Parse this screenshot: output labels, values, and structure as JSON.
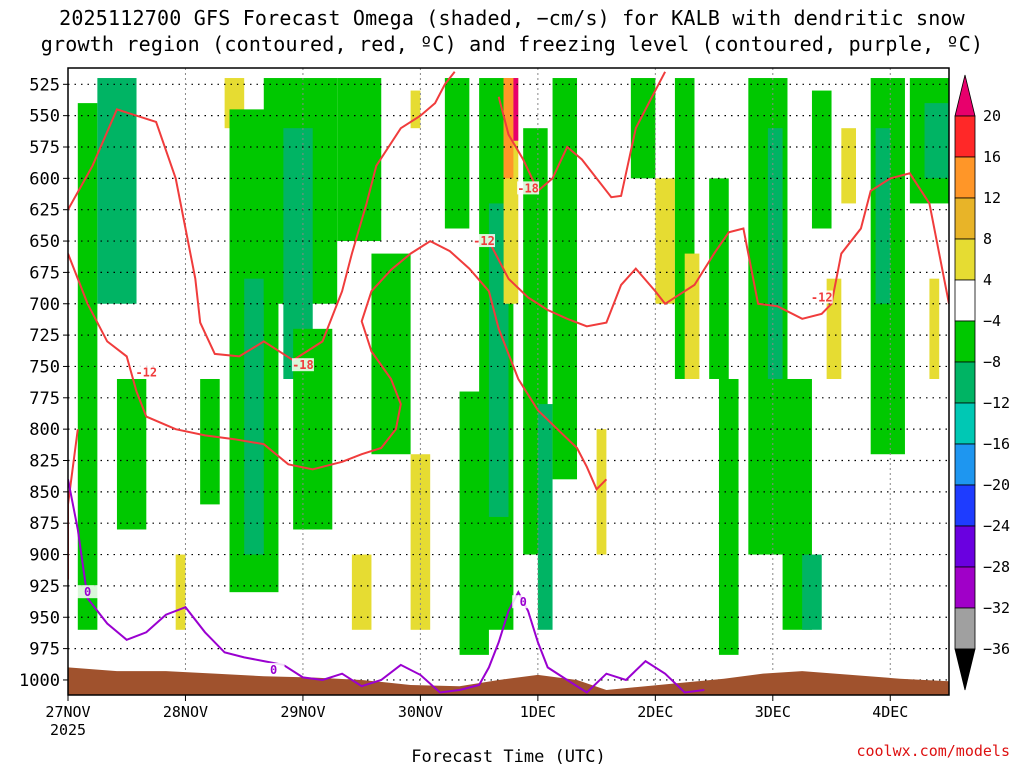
{
  "chart_data": {
    "type": "heatmap",
    "title_line1": "2025112700 GFS Forecast Omega (shaded, −cm/s) for KALB with dendritic snow",
    "title_line2": "growth region (contoured, red, ºC) and freezing level (contoured, purple, ºC)",
    "xlabel": "Forecast Time (UTC)",
    "credit": "coolwx.com/models",
    "x_ticks": [
      {
        "label": "27NOV",
        "sub": "2025",
        "hour": 0
      },
      {
        "label": "28NOV",
        "sub": "",
        "hour": 24
      },
      {
        "label": "29NOV",
        "sub": "",
        "hour": 48
      },
      {
        "label": "30NOV",
        "sub": "",
        "hour": 72
      },
      {
        "label": "1DEC",
        "sub": "",
        "hour": 96
      },
      {
        "label": "2DEC",
        "sub": "",
        "hour": 120
      },
      {
        "label": "3DEC",
        "sub": "",
        "hour": 144
      },
      {
        "label": "4DEC",
        "sub": "",
        "hour": 168
      }
    ],
    "xlim_hours": [
      0,
      180
    ],
    "y_levels_hPa": [
      525,
      550,
      575,
      600,
      625,
      650,
      675,
      700,
      725,
      750,
      775,
      800,
      825,
      850,
      875,
      900,
      925,
      950,
      975,
      1000
    ],
    "ylim_hPa": [
      512,
      1012
    ],
    "colorbar": {
      "labels": [
        "20",
        "16",
        "12",
        "8",
        "4",
        "−4",
        "−8",
        "−12",
        "−16",
        "−20",
        "−24",
        "−28",
        "−32",
        "−36"
      ],
      "colors": [
        "#e8006c",
        "#ff2828",
        "#ff9628",
        "#e8b428",
        "#e6dc32",
        "#ffffff",
        "#00c800",
        "#00b464",
        "#00c8b4",
        "#1e96f0",
        "#1e3cff",
        "#6a00e0",
        "#a000c8",
        "#a0a0a0",
        "#000000"
      ]
    },
    "omega_bands": [
      {
        "h0": 2,
        "h1": 6,
        "p0": 540,
        "p1": 960,
        "c": "green"
      },
      {
        "h0": 6,
        "h1": 14,
        "p0": 520,
        "p1": 700,
        "c": "teal"
      },
      {
        "h0": 10,
        "h1": 16,
        "p0": 760,
        "p1": 880,
        "c": "green"
      },
      {
        "h0": 22,
        "h1": 24,
        "p0": 900,
        "p1": 960,
        "c": "yellow"
      },
      {
        "h0": 27,
        "h1": 31,
        "p0": 760,
        "p1": 860,
        "c": "green"
      },
      {
        "h0": 32,
        "h1": 36,
        "p0": 520,
        "p1": 560,
        "c": "yellow"
      },
      {
        "h0": 33,
        "h1": 43,
        "p0": 545,
        "p1": 930,
        "c": "green"
      },
      {
        "h0": 36,
        "h1": 40,
        "p0": 680,
        "p1": 900,
        "c": "teal"
      },
      {
        "h0": 40,
        "h1": 55,
        "p0": 520,
        "p1": 700,
        "c": "green"
      },
      {
        "h0": 44,
        "h1": 50,
        "p0": 560,
        "p1": 760,
        "c": "teal"
      },
      {
        "h0": 46,
        "h1": 54,
        "p0": 720,
        "p1": 880,
        "c": "green"
      },
      {
        "h0": 55,
        "h1": 64,
        "p0": 520,
        "p1": 650,
        "c": "green"
      },
      {
        "h0": 58,
        "h1": 62,
        "p0": 900,
        "p1": 960,
        "c": "yellow"
      },
      {
        "h0": 62,
        "h1": 70,
        "p0": 660,
        "p1": 820,
        "c": "green"
      },
      {
        "h0": 70,
        "h1": 72,
        "p0": 530,
        "p1": 560,
        "c": "yellow"
      },
      {
        "h0": 70,
        "h1": 74,
        "p0": 820,
        "p1": 960,
        "c": "yellow"
      },
      {
        "h0": 77,
        "h1": 82,
        "p0": 520,
        "p1": 640,
        "c": "green"
      },
      {
        "h0": 80,
        "h1": 86,
        "p0": 770,
        "p1": 980,
        "c": "green"
      },
      {
        "h0": 84,
        "h1": 91,
        "p0": 520,
        "p1": 960,
        "c": "green"
      },
      {
        "h0": 86,
        "h1": 90,
        "p0": 620,
        "p1": 870,
        "c": "teal"
      },
      {
        "h0": 89,
        "h1": 92,
        "p0": 520,
        "p1": 700,
        "c": "yellow"
      },
      {
        "h0": 89,
        "h1": 91,
        "p0": 520,
        "p1": 600,
        "c": "orange"
      },
      {
        "h0": 91,
        "h1": 92,
        "p0": 520,
        "p1": 570,
        "c": "magenta"
      },
      {
        "h0": 93,
        "h1": 98,
        "p0": 560,
        "p1": 900,
        "c": "green"
      },
      {
        "h0": 96,
        "h1": 99,
        "p0": 780,
        "p1": 960,
        "c": "teal"
      },
      {
        "h0": 99,
        "h1": 104,
        "p0": 520,
        "p1": 840,
        "c": "green"
      },
      {
        "h0": 108,
        "h1": 110,
        "p0": 800,
        "p1": 900,
        "c": "yellow"
      },
      {
        "h0": 115,
        "h1": 120,
        "p0": 520,
        "p1": 600,
        "c": "green"
      },
      {
        "h0": 120,
        "h1": 124,
        "p0": 600,
        "p1": 700,
        "c": "yellow"
      },
      {
        "h0": 124,
        "h1": 128,
        "p0": 520,
        "p1": 760,
        "c": "green"
      },
      {
        "h0": 126,
        "h1": 129,
        "p0": 660,
        "p1": 760,
        "c": "yellow"
      },
      {
        "h0": 131,
        "h1": 135,
        "p0": 600,
        "p1": 760,
        "c": "green"
      },
      {
        "h0": 133,
        "h1": 137,
        "p0": 760,
        "p1": 980,
        "c": "green"
      },
      {
        "h0": 139,
        "h1": 147,
        "p0": 520,
        "p1": 900,
        "c": "green"
      },
      {
        "h0": 143,
        "h1": 146,
        "p0": 560,
        "p1": 760,
        "c": "teal"
      },
      {
        "h0": 146,
        "h1": 152,
        "p0": 760,
        "p1": 960,
        "c": "green"
      },
      {
        "h0": 150,
        "h1": 154,
        "p0": 900,
        "p1": 960,
        "c": "teal"
      },
      {
        "h0": 152,
        "h1": 156,
        "p0": 530,
        "p1": 640,
        "c": "green"
      },
      {
        "h0": 155,
        "h1": 158,
        "p0": 680,
        "p1": 760,
        "c": "yellow"
      },
      {
        "h0": 158,
        "h1": 161,
        "p0": 560,
        "p1": 620,
        "c": "yellow"
      },
      {
        "h0": 164,
        "h1": 171,
        "p0": 520,
        "p1": 820,
        "c": "green"
      },
      {
        "h0": 165,
        "h1": 168,
        "p0": 560,
        "p1": 700,
        "c": "teal"
      },
      {
        "h0": 172,
        "h1": 180,
        "p0": 520,
        "p1": 620,
        "c": "green"
      },
      {
        "h0": 175,
        "h1": 180,
        "p0": 540,
        "p1": 600,
        "c": "teal"
      },
      {
        "h0": 176,
        "h1": 178,
        "p0": 680,
        "p1": 760,
        "c": "yellow"
      }
    ],
    "dgz_contours": [
      {
        "label": "-18",
        "label_at": [
          48,
          749
        ],
        "pts": [
          [
            0,
            625
          ],
          [
            5,
            590
          ],
          [
            10,
            545
          ],
          [
            18,
            555
          ],
          [
            22,
            600
          ],
          [
            24,
            640
          ],
          [
            26,
            680
          ],
          [
            27,
            715
          ],
          [
            30,
            740
          ],
          [
            35,
            742
          ],
          [
            40,
            730
          ],
          [
            46,
            745
          ],
          [
            52,
            730
          ],
          [
            56,
            690
          ],
          [
            58,
            660
          ],
          [
            61,
            620
          ],
          [
            63,
            590
          ],
          [
            68,
            560
          ],
          [
            72,
            550
          ],
          [
            75,
            540
          ],
          [
            77,
            525
          ],
          [
            79,
            515
          ]
        ]
      },
      {
        "label": "-18",
        "label_at": [
          94,
          608
        ],
        "pts": [
          [
            88,
            535
          ],
          [
            90,
            565
          ],
          [
            93,
            585
          ],
          [
            96,
            610
          ],
          [
            99,
            600
          ],
          [
            102,
            575
          ],
          [
            105,
            585
          ],
          [
            108,
            600
          ],
          [
            111,
            615
          ],
          [
            113,
            614
          ],
          [
            116,
            560
          ],
          [
            118,
            545
          ],
          [
            120,
            530
          ],
          [
            122,
            515
          ]
        ]
      },
      {
        "label": "-12",
        "label_at": [
          16,
          755
        ],
        "pts": [
          [
            0,
            660
          ],
          [
            4,
            700
          ],
          [
            8,
            730
          ],
          [
            12,
            742
          ],
          [
            14,
            770
          ],
          [
            16,
            790
          ],
          [
            22,
            800
          ],
          [
            28,
            805
          ],
          [
            34,
            808
          ],
          [
            40,
            812
          ],
          [
            45,
            828
          ],
          [
            50,
            832
          ],
          [
            56,
            826
          ],
          [
            60,
            820
          ],
          [
            64,
            815
          ],
          [
            67,
            800
          ],
          [
            68,
            780
          ],
          [
            66,
            760
          ],
          [
            62,
            738
          ],
          [
            60,
            714
          ],
          [
            62,
            690
          ],
          [
            66,
            673
          ],
          [
            70,
            660
          ],
          [
            74,
            650
          ],
          [
            78,
            658
          ],
          [
            82,
            672
          ],
          [
            86,
            690
          ],
          [
            88,
            720
          ],
          [
            92,
            760
          ],
          [
            96,
            785
          ],
          [
            100,
            800
          ],
          [
            104,
            815
          ],
          [
            106,
            830
          ],
          [
            108,
            848
          ],
          [
            110,
            840
          ]
        ]
      },
      {
        "label": "-12",
        "label_at": [
          85,
          650
        ],
        "pts": [
          [
            86,
            650
          ],
          [
            90,
            680
          ],
          [
            94,
            695
          ],
          [
            98,
            705
          ],
          [
            102,
            712
          ],
          [
            106,
            718
          ],
          [
            110,
            715
          ],
          [
            113,
            685
          ],
          [
            116,
            672
          ],
          [
            120,
            690
          ],
          [
            122,
            700
          ],
          [
            128,
            685
          ],
          [
            132,
            660
          ],
          [
            135,
            643
          ],
          [
            138,
            640
          ],
          [
            141,
            700
          ],
          [
            145,
            702
          ],
          [
            150,
            712
          ],
          [
            154,
            708
          ],
          [
            156,
            700
          ],
          [
            158,
            660
          ],
          [
            162,
            640
          ],
          [
            164,
            610
          ],
          [
            168,
            600
          ],
          [
            172,
            596
          ],
          [
            176,
            620
          ],
          [
            180,
            700
          ]
        ]
      },
      {
        "label": "-12",
        "label_at": [
          154,
          695
        ],
        "pts": [
          [
            0,
            920
          ],
          [
            0,
            860
          ],
          [
            2,
            800
          ]
        ]
      }
    ],
    "freezing_contour": {
      "label": "0",
      "pts": [
        [
          0,
          840
        ],
        [
          2,
          880
        ],
        [
          4,
          935
        ],
        [
          8,
          955
        ],
        [
          12,
          968
        ],
        [
          16,
          962
        ],
        [
          20,
          948
        ],
        [
          24,
          942
        ],
        [
          28,
          962
        ],
        [
          32,
          978
        ],
        [
          36,
          982
        ],
        [
          40,
          985
        ],
        [
          44,
          988
        ],
        [
          48,
          998
        ],
        [
          52,
          1000
        ],
        [
          56,
          995
        ],
        [
          60,
          1005
        ],
        [
          64,
          1000
        ],
        [
          68,
          988
        ],
        [
          72,
          996
        ],
        [
          76,
          1010
        ],
        [
          80,
          1008
        ],
        [
          84,
          1004
        ],
        [
          86,
          990
        ],
        [
          88,
          970
        ],
        [
          90,
          945
        ],
        [
          92,
          930
        ],
        [
          94,
          945
        ],
        [
          96,
          970
        ],
        [
          98,
          990
        ],
        [
          102,
          1000
        ],
        [
          106,
          1010
        ],
        [
          110,
          995
        ],
        [
          114,
          1000
        ],
        [
          118,
          985
        ],
        [
          122,
          995
        ],
        [
          126,
          1010
        ],
        [
          130,
          1008
        ]
      ],
      "labels_at": [
        [
          4,
          930
        ],
        [
          42,
          992
        ],
        [
          93,
          938
        ]
      ]
    },
    "terrain_pressure": [
      [
        0,
        990
      ],
      [
        10,
        993
      ],
      [
        20,
        993
      ],
      [
        30,
        995
      ],
      [
        40,
        997
      ],
      [
        50,
        998
      ],
      [
        60,
        1000
      ],
      [
        70,
        1004
      ],
      [
        80,
        1005
      ],
      [
        88,
        1000
      ],
      [
        96,
        996
      ],
      [
        104,
        1000
      ],
      [
        110,
        1008
      ],
      [
        118,
        1005
      ],
      [
        126,
        1002
      ],
      [
        134,
        999
      ],
      [
        142,
        995
      ],
      [
        150,
        993
      ],
      [
        160,
        996
      ],
      [
        170,
        999
      ],
      [
        180,
        1001
      ]
    ]
  }
}
